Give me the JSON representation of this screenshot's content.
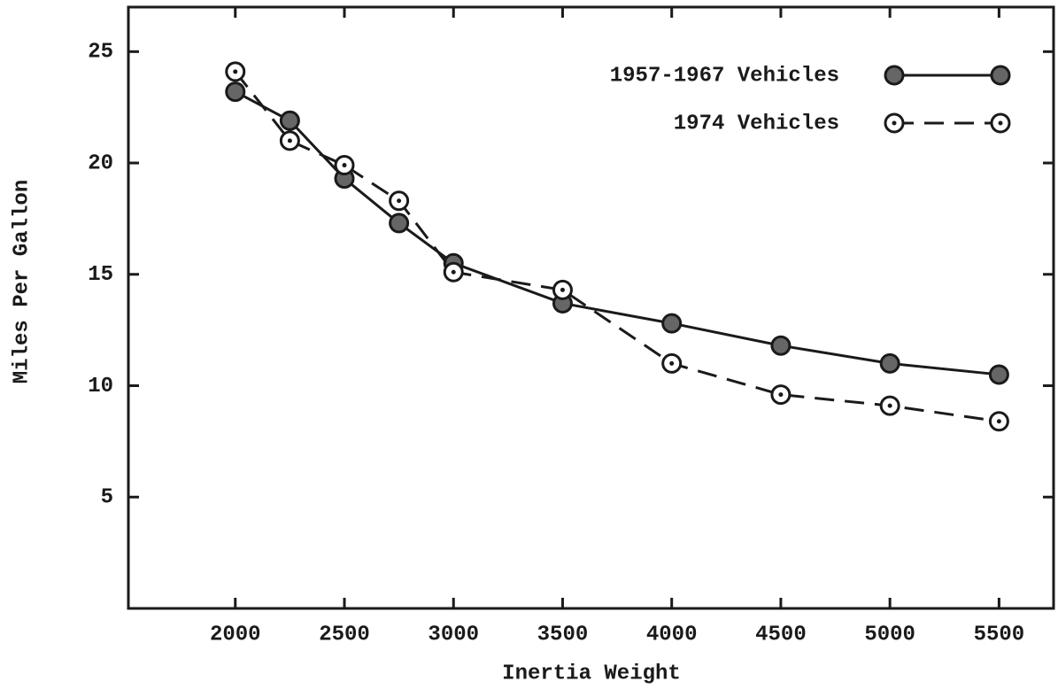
{
  "chart_data": {
    "type": "line",
    "xlabel": "Inertia Weight",
    "ylabel": "Miles Per Gallon",
    "x": [
      2000,
      2250,
      2500,
      2750,
      3000,
      3500,
      4000,
      4500,
      5000,
      5500
    ],
    "series": [
      {
        "name": "1957-1967 Vehicles",
        "color": "#1a1a1a",
        "linestyle": "solid",
        "marker": "filled",
        "values": [
          23.2,
          21.9,
          19.3,
          17.3,
          15.5,
          13.7,
          12.8,
          11.8,
          11.0,
          10.5
        ]
      },
      {
        "name": "1974 Vehicles",
        "color": "#1a1a1a",
        "linestyle": "dashed",
        "marker": "open",
        "values": [
          24.1,
          21.0,
          19.9,
          18.3,
          15.1,
          14.3,
          11.0,
          9.6,
          9.1,
          8.4
        ]
      }
    ],
    "xlim": [
      1510,
      5750
    ],
    "ylim": [
      0,
      27
    ],
    "xticks": [
      2000,
      2500,
      3000,
      3500,
      4000,
      4500,
      5000,
      5500
    ],
    "yticks": [
      5,
      10,
      15,
      20,
      25
    ],
    "grid": false,
    "legend": "upper right"
  }
}
